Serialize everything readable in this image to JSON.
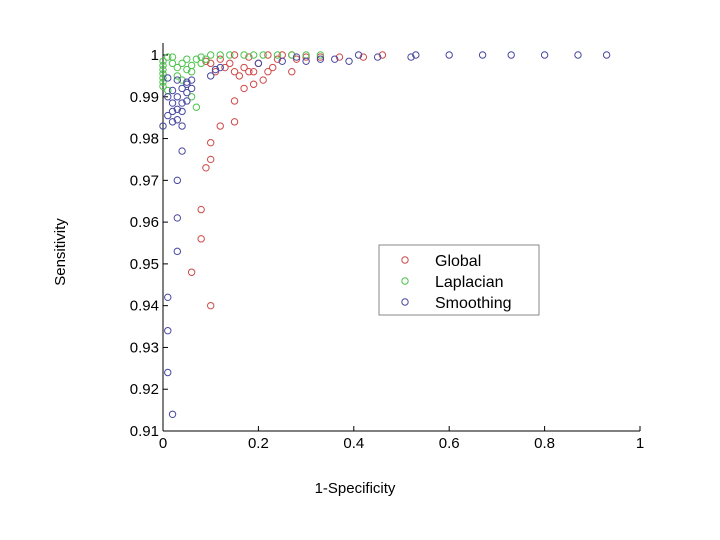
{
  "chart_data": {
    "type": "scatter",
    "title": "",
    "xlabel": "1-Specificity",
    "ylabel": "Sensitivity",
    "xlim": [
      0,
      1
    ],
    "ylim": [
      0.91,
      1.0
    ],
    "xticks": [
      "0",
      "0.2",
      "0.4",
      "0.6",
      "0.8",
      "1"
    ],
    "yticks": [
      "0.91",
      "0.92",
      "0.93",
      "0.94",
      "0.95",
      "0.96",
      "0.97",
      "0.98",
      "0.99",
      "1"
    ],
    "grid": false,
    "legend_position": "center-right",
    "series": [
      {
        "name": "Global",
        "color": "#d04848",
        "marker": "circle-open",
        "points": [
          [
            0.1,
            0.94
          ],
          [
            0.06,
            0.948
          ],
          [
            0.08,
            0.956
          ],
          [
            0.08,
            0.963
          ],
          [
            0.09,
            0.973
          ],
          [
            0.1,
            0.975
          ],
          [
            0.1,
            0.979
          ],
          [
            0.12,
            0.983
          ],
          [
            0.15,
            0.984
          ],
          [
            0.15,
            0.989
          ],
          [
            0.17,
            0.992
          ],
          [
            0.19,
            0.993
          ],
          [
            0.16,
            0.995
          ],
          [
            0.19,
            0.996
          ],
          [
            0.21,
            0.994
          ],
          [
            0.22,
            0.996
          ],
          [
            0.27,
            0.996
          ],
          [
            0.11,
            0.996
          ],
          [
            0.13,
            0.997
          ],
          [
            0.15,
            0.996
          ],
          [
            0.17,
            0.997
          ],
          [
            0.18,
            0.996
          ],
          [
            0.23,
            0.997
          ],
          [
            0.2,
            0.998
          ],
          [
            0.24,
            0.999
          ],
          [
            0.28,
            0.999
          ],
          [
            0.3,
            0.9995
          ],
          [
            0.33,
            0.9995
          ],
          [
            0.37,
            0.9995
          ],
          [
            0.42,
            0.9995
          ],
          [
            0.46,
            1.0
          ],
          [
            0.27,
            1.0
          ],
          [
            0.22,
            1.0
          ],
          [
            0.15,
            1.0
          ],
          [
            0.12,
            0.999
          ],
          [
            0.1,
            0.998
          ],
          [
            0.09,
            0.9985
          ],
          [
            0.14,
            0.998
          ],
          [
            0.18,
            0.9995
          ],
          [
            0.25,
            1.0
          ]
        ]
      },
      {
        "name": "Laplacian",
        "color": "#4cc44c",
        "marker": "circle-open",
        "points": [
          [
            0.0,
            0.9985
          ],
          [
            0.0,
            0.9975
          ],
          [
            0.0,
            0.9965
          ],
          [
            0.0,
            0.9955
          ],
          [
            0.0,
            0.9945
          ],
          [
            0.0,
            0.9935
          ],
          [
            0.0,
            0.9925
          ],
          [
            0.01,
            0.9915
          ],
          [
            0.01,
            0.9995
          ],
          [
            0.02,
            0.998
          ],
          [
            0.03,
            0.997
          ],
          [
            0.04,
            0.998
          ],
          [
            0.05,
            0.999
          ],
          [
            0.05,
            0.9965
          ],
          [
            0.06,
            0.9975
          ],
          [
            0.07,
            0.999
          ],
          [
            0.08,
            0.9995
          ],
          [
            0.09,
            0.999
          ],
          [
            0.1,
            1.0
          ],
          [
            0.12,
            1.0
          ],
          [
            0.14,
            1.0
          ],
          [
            0.17,
            1.0
          ],
          [
            0.19,
            1.0
          ],
          [
            0.21,
            1.0
          ],
          [
            0.24,
            1.0
          ],
          [
            0.27,
            1.0
          ],
          [
            0.3,
            1.0
          ],
          [
            0.33,
            1.0
          ],
          [
            0.07,
            0.9875
          ],
          [
            0.04,
            0.994
          ],
          [
            0.06,
            0.996
          ],
          [
            0.08,
            0.998
          ],
          [
            0.02,
            0.9995
          ],
          [
            0.03,
            0.995
          ],
          [
            0.06,
            0.99
          ]
        ]
      },
      {
        "name": "Smoothing",
        "color": "#4848a0",
        "marker": "circle-open",
        "points": [
          [
            0.02,
            0.914
          ],
          [
            0.01,
            0.924
          ],
          [
            0.01,
            0.934
          ],
          [
            0.01,
            0.942
          ],
          [
            0.03,
            0.953
          ],
          [
            0.03,
            0.961
          ],
          [
            0.03,
            0.97
          ],
          [
            0.04,
            0.977
          ],
          [
            0.0,
            0.983
          ],
          [
            0.02,
            0.984
          ],
          [
            0.03,
            0.9845
          ],
          [
            0.04,
            0.983
          ],
          [
            0.01,
            0.9855
          ],
          [
            0.02,
            0.9865
          ],
          [
            0.04,
            0.9865
          ],
          [
            0.03,
            0.987
          ],
          [
            0.02,
            0.9885
          ],
          [
            0.04,
            0.9885
          ],
          [
            0.05,
            0.989
          ],
          [
            0.01,
            0.99
          ],
          [
            0.03,
            0.99
          ],
          [
            0.05,
            0.991
          ],
          [
            0.02,
            0.9915
          ],
          [
            0.04,
            0.992
          ],
          [
            0.06,
            0.992
          ],
          [
            0.05,
            0.993
          ],
          [
            0.05,
            0.9935
          ],
          [
            0.06,
            0.994
          ],
          [
            0.03,
            0.994
          ],
          [
            0.01,
            0.9945
          ],
          [
            0.1,
            0.995
          ],
          [
            0.11,
            0.9965
          ],
          [
            0.12,
            0.997
          ],
          [
            0.2,
            0.998
          ],
          [
            0.25,
            0.9985
          ],
          [
            0.3,
            0.9985
          ],
          [
            0.36,
            0.999
          ],
          [
            0.39,
            0.9985
          ],
          [
            0.45,
            0.9995
          ],
          [
            0.52,
            0.9995
          ],
          [
            0.53,
            1.0
          ],
          [
            0.6,
            1.0
          ],
          [
            0.67,
            1.0
          ],
          [
            0.73,
            1.0
          ],
          [
            0.8,
            1.0
          ],
          [
            0.87,
            1.0
          ],
          [
            0.93,
            1.0
          ],
          [
            0.41,
            1.0
          ],
          [
            0.33,
            0.999
          ],
          [
            0.28,
            0.9995
          ]
        ]
      }
    ]
  }
}
